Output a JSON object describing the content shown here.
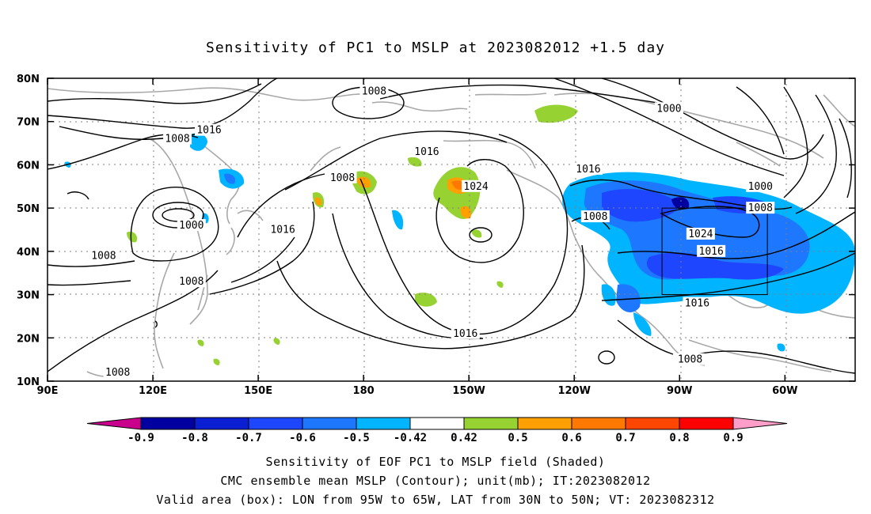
{
  "title": "Sensitivity of PC1 to MSLP at 2023082012 +1.5 day",
  "map": {
    "lon_labels": [
      "90E",
      "120E",
      "150E",
      "180",
      "150W",
      "120W",
      "90W",
      "60W"
    ],
    "lat_labels": [
      "80N",
      "70N",
      "60N",
      "50N",
      "40N",
      "30N",
      "20N",
      "10N"
    ],
    "contour_labels": [
      {
        "text": "1008",
        "lon": 183,
        "lat": 77
      },
      {
        "text": "1000",
        "lon": 267,
        "lat": 73
      },
      {
        "text": "1016",
        "lon": 136,
        "lat": 68
      },
      {
        "text": "1008",
        "lon": 127,
        "lat": 66
      },
      {
        "text": "1016",
        "lon": 198,
        "lat": 63
      },
      {
        "text": "1016",
        "lon": 244,
        "lat": 59
      },
      {
        "text": "1008",
        "lon": 174,
        "lat": 57
      },
      {
        "text": "1024",
        "lon": 212,
        "lat": 55
      },
      {
        "text": "1000",
        "lon": 293,
        "lat": 55
      },
      {
        "text": "1008",
        "lon": 293,
        "lat": 50
      },
      {
        "text": "1008",
        "lon": 246,
        "lat": 48
      },
      {
        "text": "1000",
        "lon": 131,
        "lat": 46
      },
      {
        "text": "1024",
        "lon": 276,
        "lat": 44
      },
      {
        "text": "1016",
        "lon": 157,
        "lat": 45
      },
      {
        "text": "1016",
        "lon": 279,
        "lat": 40
      },
      {
        "text": "1008",
        "lon": 106,
        "lat": 39
      },
      {
        "text": "1008",
        "lon": 131,
        "lat": 33
      },
      {
        "text": "1016",
        "lon": 275,
        "lat": 28
      },
      {
        "text": "1016",
        "lon": 209,
        "lat": 21
      },
      {
        "text": "1008",
        "lon": 273,
        "lat": 15
      },
      {
        "text": "1008",
        "lon": 110,
        "lat": 12
      }
    ],
    "valid_box": {
      "lon_min": 265,
      "lon_max": 295,
      "lat_min": 30,
      "lat_max": 50
    }
  },
  "colorbar": {
    "labels": [
      "-0.9",
      "-0.8",
      "-0.7",
      "-0.6",
      "-0.5",
      "-0.42",
      "0.42",
      "0.5",
      "0.6",
      "0.7",
      "0.8",
      "0.9"
    ],
    "colors": [
      "#0000a0",
      "#0a1ed2",
      "#1e46ff",
      "#1e78ff",
      "#00b4ff",
      "#ffffff",
      "#96d232",
      "#ffa000",
      "#ff7800",
      "#ff4600",
      "#ff0000"
    ],
    "low_end_color": "#c8008c",
    "high_end_color": "#ff9ec8"
  },
  "footer": {
    "line1": "Sensitivity of EOF PC1 to MSLP field (Shaded)",
    "line2": "CMC ensemble mean MSLP (Contour); unit(mb); IT:2023082012",
    "line3": "Valid area (box): LON from 95W to 65W, LAT from 30N to 50N; VT: 2023082312"
  }
}
